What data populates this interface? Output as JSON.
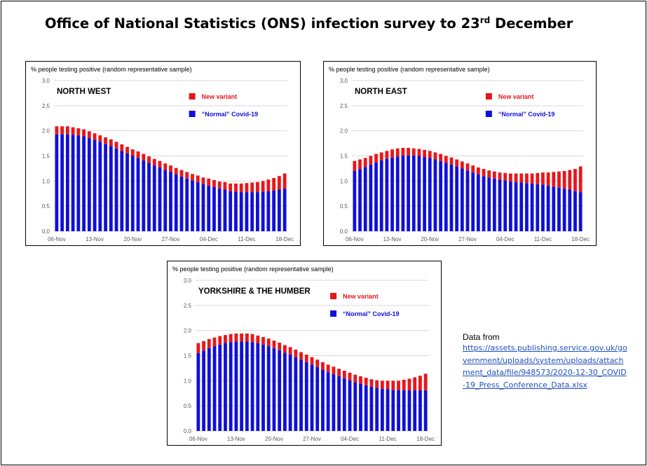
{
  "page": {
    "title_main": "Office of National Statistics (ONS) infection survey to 23",
    "title_sup": "rd",
    "title_end": " December",
    "source_label": "Data from",
    "source_url": "https://assets.publishing.service.gov.uk/government/uploads/system/uploads/attachment_data/file/948573/2020-12-30_COVID-19_Press_Conference_Data.xlsx"
  },
  "colors": {
    "new_variant": "#e8161a",
    "normal": "#1010d8",
    "grid": "#d9d9d9",
    "axis_text": "#595959"
  },
  "chart_data": [
    {
      "type": "bar",
      "stacked": true,
      "title": "NORTH WEST",
      "ylabel": "% people testing positive (random representative sample)",
      "ylim": [
        0,
        3.0
      ],
      "yticks": [
        "0.0",
        "0.5",
        "1.0",
        "1.5",
        "2.0",
        "2.5",
        "3.0"
      ],
      "xtick_labels": [
        "06-Nov",
        "13-Nov",
        "20-Nov",
        "27-Nov",
        "04-Dec",
        "11-Dec",
        "18-Dec"
      ],
      "grid": true,
      "legend": "top-center",
      "series": [
        {
          "name": "“Normal” Covid-19",
          "values": [
            1.93,
            1.93,
            1.93,
            1.92,
            1.91,
            1.89,
            1.86,
            1.82,
            1.78,
            1.74,
            1.7,
            1.65,
            1.6,
            1.55,
            1.5,
            1.46,
            1.41,
            1.36,
            1.31,
            1.27,
            1.22,
            1.18,
            1.13,
            1.09,
            1.05,
            1.01,
            0.98,
            0.94,
            0.91,
            0.88,
            0.85,
            0.83,
            0.8,
            0.79,
            0.78,
            0.78,
            0.78,
            0.78,
            0.79,
            0.8,
            0.81,
            0.83,
            0.85
          ]
        },
        {
          "name": "New variant",
          "values": [
            0.16,
            0.16,
            0.16,
            0.15,
            0.14,
            0.14,
            0.13,
            0.13,
            0.13,
            0.13,
            0.13,
            0.13,
            0.13,
            0.13,
            0.13,
            0.13,
            0.13,
            0.13,
            0.13,
            0.13,
            0.13,
            0.13,
            0.13,
            0.13,
            0.13,
            0.13,
            0.13,
            0.13,
            0.14,
            0.14,
            0.14,
            0.15,
            0.15,
            0.16,
            0.17,
            0.18,
            0.19,
            0.2,
            0.21,
            0.23,
            0.25,
            0.27,
            0.3
          ]
        }
      ]
    },
    {
      "type": "bar",
      "stacked": true,
      "title": "NORTH EAST",
      "ylabel": "% people testing positive (random representative sample)",
      "ylim": [
        0,
        3.0
      ],
      "yticks": [
        "0.0",
        "0.5",
        "1.0",
        "1.5",
        "2.0",
        "2.5",
        "3.0"
      ],
      "xtick_labels": [
        "06-Nov",
        "13-Nov",
        "20-Nov",
        "27-Nov",
        "04-Dec",
        "11-Dec",
        "18-Dec"
      ],
      "grid": true,
      "legend": "top-center",
      "series": [
        {
          "name": "“Normal” Covid-19",
          "values": [
            1.2,
            1.24,
            1.28,
            1.33,
            1.37,
            1.41,
            1.44,
            1.47,
            1.49,
            1.5,
            1.51,
            1.51,
            1.5,
            1.48,
            1.46,
            1.43,
            1.4,
            1.36,
            1.33,
            1.29,
            1.25,
            1.21,
            1.17,
            1.13,
            1.1,
            1.07,
            1.05,
            1.03,
            1.01,
            0.99,
            0.98,
            0.97,
            0.96,
            0.95,
            0.94,
            0.93,
            0.91,
            0.89,
            0.87,
            0.85,
            0.83,
            0.8,
            0.78
          ]
        },
        {
          "name": "New variant",
          "values": [
            0.2,
            0.19,
            0.18,
            0.17,
            0.17,
            0.16,
            0.16,
            0.16,
            0.16,
            0.16,
            0.15,
            0.14,
            0.14,
            0.14,
            0.14,
            0.14,
            0.14,
            0.14,
            0.14,
            0.14,
            0.14,
            0.14,
            0.14,
            0.14,
            0.14,
            0.14,
            0.14,
            0.14,
            0.15,
            0.16,
            0.17,
            0.18,
            0.19,
            0.2,
            0.22,
            0.24,
            0.26,
            0.29,
            0.32,
            0.35,
            0.39,
            0.44,
            0.51
          ]
        }
      ]
    },
    {
      "type": "bar",
      "stacked": true,
      "title": "YORKSHIRE & THE HUMBER",
      "ylabel": "% people testing positive (random representative sample)",
      "ylim": [
        0,
        3.0
      ],
      "yticks": [
        "0.0",
        "0.5",
        "1.0",
        "1.5",
        "2.0",
        "2.5",
        "3.0"
      ],
      "xtick_labels": [
        "06-Nov",
        "13-Nov",
        "20-Nov",
        "27-Nov",
        "04-Dec",
        "11-Dec",
        "18-Dec"
      ],
      "grid": true,
      "legend": "top-center",
      "series": [
        {
          "name": "“Normal” Covid-19",
          "values": [
            1.55,
            1.6,
            1.65,
            1.69,
            1.72,
            1.75,
            1.77,
            1.78,
            1.78,
            1.78,
            1.77,
            1.75,
            1.72,
            1.69,
            1.65,
            1.61,
            1.56,
            1.52,
            1.47,
            1.42,
            1.37,
            1.32,
            1.27,
            1.22,
            1.17,
            1.13,
            1.09,
            1.05,
            1.01,
            0.97,
            0.94,
            0.91,
            0.88,
            0.86,
            0.84,
            0.83,
            0.82,
            0.81,
            0.81,
            0.81,
            0.81,
            0.81,
            0.81
          ]
        },
        {
          "name": "New variant",
          "values": [
            0.2,
            0.19,
            0.18,
            0.17,
            0.17,
            0.16,
            0.16,
            0.16,
            0.16,
            0.16,
            0.16,
            0.15,
            0.15,
            0.15,
            0.15,
            0.15,
            0.15,
            0.15,
            0.15,
            0.15,
            0.15,
            0.15,
            0.15,
            0.15,
            0.15,
            0.15,
            0.15,
            0.15,
            0.15,
            0.15,
            0.15,
            0.15,
            0.15,
            0.15,
            0.16,
            0.17,
            0.18,
            0.19,
            0.21,
            0.23,
            0.26,
            0.29,
            0.33
          ]
        }
      ]
    }
  ]
}
